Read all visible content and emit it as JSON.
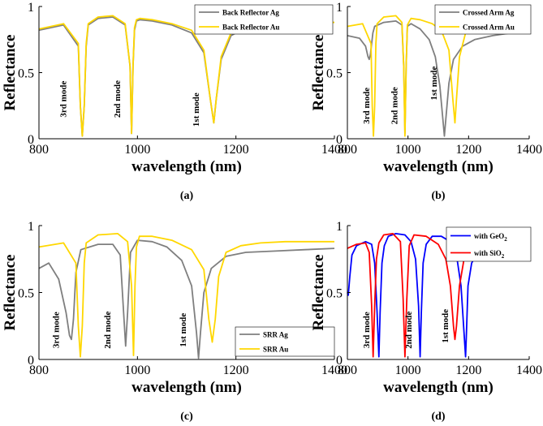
{
  "chart_data": [
    {
      "type": "line",
      "panel": "(a)",
      "xlabel": "wavelength (nm)",
      "ylabel": "Reflectance",
      "xlim": [
        800,
        1400
      ],
      "ylim": [
        0,
        1
      ],
      "xticks": [
        800,
        1000,
        1200,
        1400
      ],
      "yticks": [
        0,
        0.5,
        1
      ],
      "legend": "top-right",
      "grid": false,
      "annotations": [
        {
          "text": "3rd mode",
          "x": 855,
          "y": 0.3
        },
        {
          "text": "2nd mode",
          "x": 965,
          "y": 0.3
        },
        {
          "text": "1st mode",
          "x": 1125,
          "y": 0.22
        }
      ],
      "series": [
        {
          "name": "Back Reflector Ag",
          "color": "#7f7f7f",
          "x": [
            800,
            850,
            880,
            884,
            888,
            892,
            896,
            900,
            920,
            950,
            975,
            985,
            988,
            991,
            994,
            998,
            1005,
            1030,
            1070,
            1110,
            1135,
            1148,
            1155,
            1160,
            1170,
            1190,
            1220,
            1260,
            1300,
            1350,
            1400
          ],
          "y": [
            0.82,
            0.86,
            0.7,
            0.25,
            0.02,
            0.25,
            0.7,
            0.86,
            0.91,
            0.92,
            0.86,
            0.55,
            0.04,
            0.55,
            0.82,
            0.89,
            0.9,
            0.89,
            0.86,
            0.8,
            0.65,
            0.3,
            0.12,
            0.3,
            0.6,
            0.78,
            0.84,
            0.86,
            0.87,
            0.87,
            0.88
          ]
        },
        {
          "name": "Back Reflector Au",
          "color": "#ffd700",
          "x": [
            800,
            850,
            880,
            884,
            888,
            892,
            896,
            900,
            920,
            950,
            975,
            985,
            988,
            991,
            994,
            998,
            1005,
            1030,
            1070,
            1110,
            1135,
            1148,
            1155,
            1160,
            1170,
            1190,
            1220,
            1260,
            1300,
            1350,
            1400
          ],
          "y": [
            0.83,
            0.87,
            0.72,
            0.25,
            0.02,
            0.25,
            0.72,
            0.87,
            0.92,
            0.93,
            0.87,
            0.55,
            0.04,
            0.55,
            0.84,
            0.9,
            0.91,
            0.9,
            0.87,
            0.82,
            0.67,
            0.3,
            0.12,
            0.3,
            0.62,
            0.8,
            0.85,
            0.87,
            0.88,
            0.88,
            0.88
          ]
        }
      ]
    },
    {
      "type": "line",
      "panel": "(b)",
      "xlabel": "wavelength (nm)",
      "ylabel": "Reflectance",
      "xlim": [
        800,
        1400
      ],
      "ylim": [
        0,
        1
      ],
      "xticks": [
        800,
        1000,
        1200,
        1400
      ],
      "yticks": [
        0,
        0.5,
        1
      ],
      "legend": "top-right",
      "grid": false,
      "annotations": [
        {
          "text": "3rd mode",
          "x": 872,
          "y": 0.25
        },
        {
          "text": "2nd mode",
          "x": 965,
          "y": 0.25
        },
        {
          "text": "1st mode",
          "x": 1095,
          "y": 0.42
        }
      ],
      "series": [
        {
          "name": "Crossed Arm Ag",
          "color": "#7f7f7f",
          "x": [
            800,
            840,
            860,
            868,
            872,
            876,
            880,
            884,
            890,
            920,
            960,
            980,
            986,
            990,
            994,
            998,
            1010,
            1040,
            1070,
            1090,
            1105,
            1115,
            1120,
            1125,
            1135,
            1150,
            1180,
            1220,
            1280,
            1340,
            1400
          ],
          "y": [
            0.78,
            0.76,
            0.7,
            0.62,
            0.6,
            0.64,
            0.72,
            0.8,
            0.85,
            0.88,
            0.89,
            0.86,
            0.55,
            0.04,
            0.55,
            0.85,
            0.87,
            0.83,
            0.75,
            0.62,
            0.4,
            0.15,
            0.02,
            0.15,
            0.42,
            0.6,
            0.7,
            0.75,
            0.78,
            0.8,
            0.82
          ]
        },
        {
          "name": "Crossed Arm Au",
          "color": "#ffd700",
          "x": [
            800,
            850,
            878,
            882,
            886,
            890,
            894,
            898,
            920,
            960,
            980,
            986,
            990,
            994,
            998,
            1010,
            1040,
            1080,
            1110,
            1135,
            1148,
            1155,
            1160,
            1170,
            1190,
            1220,
            1260,
            1300,
            1350,
            1400
          ],
          "y": [
            0.85,
            0.87,
            0.72,
            0.25,
            0.02,
            0.25,
            0.72,
            0.87,
            0.92,
            0.93,
            0.88,
            0.55,
            0.02,
            0.55,
            0.86,
            0.91,
            0.9,
            0.87,
            0.82,
            0.67,
            0.3,
            0.12,
            0.3,
            0.62,
            0.8,
            0.85,
            0.87,
            0.88,
            0.88,
            0.88
          ]
        }
      ]
    },
    {
      "type": "line",
      "panel": "(c)",
      "xlabel": "wavelength (nm)",
      "ylabel": "Reflectance",
      "xlim": [
        800,
        1400
      ],
      "ylim": [
        0,
        1
      ],
      "xticks": [
        800,
        1000,
        1200,
        1400
      ],
      "yticks": [
        0,
        0.5,
        1
      ],
      "legend": "bottom-right",
      "grid": false,
      "annotations": [
        {
          "text": "3rd mode",
          "x": 840,
          "y": 0.22
        },
        {
          "text": "2nd mode",
          "x": 945,
          "y": 0.22
        },
        {
          "text": "1st mode",
          "x": 1098,
          "y": 0.22
        }
      ],
      "series": [
        {
          "name": "SRR Ag",
          "color": "#7f7f7f",
          "x": [
            800,
            820,
            840,
            855,
            862,
            866,
            870,
            875,
            885,
            920,
            950,
            965,
            972,
            976,
            980,
            986,
            1000,
            1030,
            1060,
            1090,
            1110,
            1120,
            1124,
            1128,
            1135,
            1150,
            1180,
            1220,
            1280,
            1340,
            1400
          ],
          "y": [
            0.68,
            0.72,
            0.6,
            0.35,
            0.18,
            0.15,
            0.3,
            0.65,
            0.82,
            0.86,
            0.86,
            0.78,
            0.35,
            0.1,
            0.35,
            0.8,
            0.89,
            0.88,
            0.84,
            0.74,
            0.55,
            0.2,
            0.01,
            0.2,
            0.5,
            0.68,
            0.77,
            0.8,
            0.81,
            0.82,
            0.83
          ]
        },
        {
          "name": "SRR Au",
          "color": "#ffd700",
          "x": [
            800,
            850,
            875,
            880,
            884,
            888,
            892,
            896,
            920,
            960,
            980,
            988,
            992,
            995,
            998,
            1004,
            1030,
            1070,
            1110,
            1135,
            1145,
            1152,
            1158,
            1165,
            1180,
            1210,
            1250,
            1300,
            1350,
            1400
          ],
          "y": [
            0.84,
            0.87,
            0.72,
            0.25,
            0.02,
            0.25,
            0.72,
            0.87,
            0.93,
            0.94,
            0.88,
            0.55,
            0.03,
            0.55,
            0.84,
            0.92,
            0.92,
            0.89,
            0.82,
            0.67,
            0.3,
            0.13,
            0.3,
            0.62,
            0.8,
            0.85,
            0.87,
            0.88,
            0.88,
            0.88
          ]
        }
      ]
    },
    {
      "type": "line",
      "panel": "(d)",
      "xlabel": "wavelength (nm)",
      "ylabel": "Reflectance",
      "xlim": [
        800,
        1400
      ],
      "ylim": [
        0,
        1
      ],
      "xticks": [
        800,
        1000,
        1200,
        1400
      ],
      "yticks": [
        0,
        0.5,
        1
      ],
      "legend": "top-right",
      "grid": false,
      "annotations": [
        {
          "text": "3rd mode",
          "x": 872,
          "y": 0.22
        },
        {
          "text": "2nd mode",
          "x": 1012,
          "y": 0.22
        },
        {
          "text": "1st mode",
          "x": 1132,
          "y": 0.25
        }
      ],
      "series": [
        {
          "name_base": "with GeO",
          "name_sub": "2",
          "color": "#0000ff",
          "x": [
            800,
            803,
            808,
            815,
            830,
            860,
            880,
            890,
            898,
            904,
            908,
            914,
            922,
            935,
            960,
            990,
            1010,
            1025,
            1035,
            1040,
            1044,
            1050,
            1060,
            1080,
            1110,
            1140,
            1160,
            1175,
            1185,
            1190,
            1193,
            1198,
            1210,
            1225,
            1240
          ],
          "y": [
            0.5,
            0.48,
            0.62,
            0.78,
            0.85,
            0.88,
            0.86,
            0.72,
            0.35,
            0.02,
            0.35,
            0.72,
            0.85,
            0.92,
            0.94,
            0.93,
            0.88,
            0.75,
            0.4,
            0.02,
            0.35,
            0.72,
            0.86,
            0.92,
            0.92,
            0.88,
            0.78,
            0.55,
            0.2,
            0.02,
            0.2,
            0.55,
            0.72,
            0.78,
            0.8
          ]
        },
        {
          "name_base": "with SiO",
          "name_sub": "2",
          "color": "#ff0000",
          "x": [
            800,
            830,
            860,
            872,
            880,
            885,
            890,
            896,
            904,
            920,
            950,
            975,
            984,
            990,
            996,
            1004,
            1020,
            1060,
            1100,
            1125,
            1140,
            1150,
            1155,
            1160,
            1170,
            1185,
            1200
          ],
          "y": [
            0.83,
            0.86,
            0.87,
            0.8,
            0.4,
            0.02,
            0.4,
            0.75,
            0.87,
            0.93,
            0.94,
            0.88,
            0.45,
            0.02,
            0.45,
            0.85,
            0.93,
            0.92,
            0.86,
            0.75,
            0.55,
            0.25,
            0.15,
            0.25,
            0.55,
            0.75,
            0.82
          ]
        }
      ]
    }
  ]
}
